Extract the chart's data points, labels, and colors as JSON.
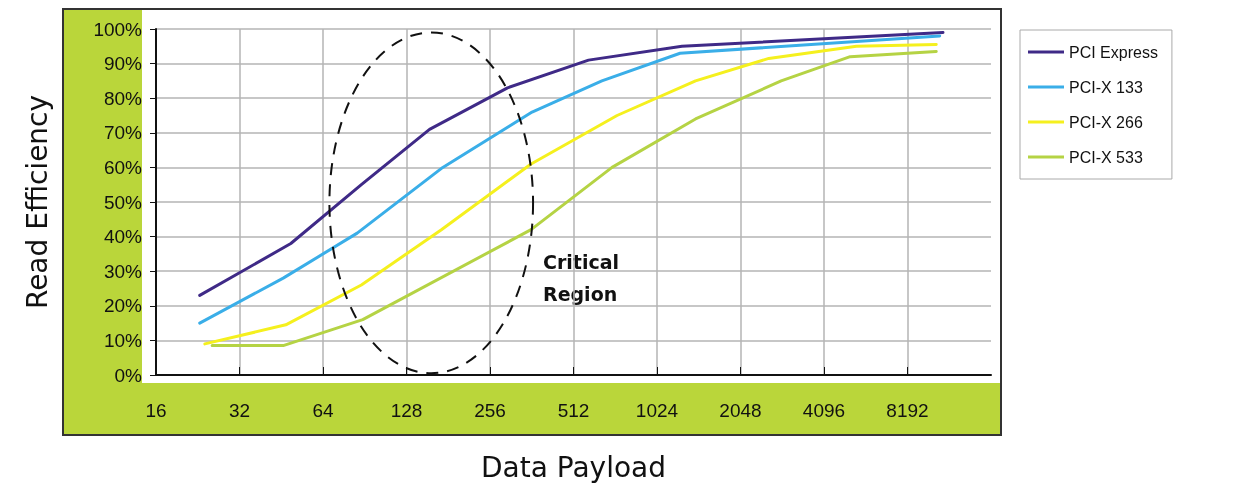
{
  "chart_data": {
    "type": "line",
    "xlabel": "Data Payload",
    "ylabel": "Read Efficiency",
    "log": "x",
    "grid": true,
    "legend": "right",
    "marker": "none",
    "line_style": "solid",
    "xlim": [
      16,
      16384
    ],
    "xticks": [
      16,
      32,
      64,
      128,
      256,
      512,
      1024,
      2048,
      4096,
      8192
    ],
    "ylim": [
      0,
      100
    ],
    "yticks": [
      {
        "value": 0,
        "label": "0%"
      },
      {
        "value": 10,
        "label": "10%"
      },
      {
        "value": 20,
        "label": "20%"
      },
      {
        "value": 30,
        "label": "30%"
      },
      {
        "value": 40,
        "label": "40%"
      },
      {
        "value": 50,
        "label": "50%"
      },
      {
        "value": 60,
        "label": "60%"
      },
      {
        "value": 70,
        "label": "70%"
      },
      {
        "value": 80,
        "label": "80%"
      },
      {
        "value": 90,
        "label": "90%"
      },
      {
        "value": 100,
        "label": "100%"
      }
    ],
    "annotations": [
      "Critical Region"
    ],
    "series": [
      {
        "name": "PCI Express",
        "color": "#3f2a87",
        "x": [
          23,
          49,
          88,
          155,
          296,
          580,
          1260,
          11000
        ],
        "values": [
          23,
          38,
          55,
          71,
          83,
          91,
          95,
          99
        ]
      },
      {
        "name": "PCI-X 133",
        "color": "#3aaee8",
        "x": [
          23,
          46,
          85,
          173,
          363,
          648,
          1240,
          10700
        ],
        "values": [
          15,
          28,
          41,
          60,
          76,
          85,
          93,
          98
        ]
      },
      {
        "name": "PCI-X 266",
        "color": "#f5f01e",
        "x": [
          24,
          47,
          88,
          171,
          360,
          735,
          1410,
          2590,
          5360,
          10400
        ],
        "values": [
          9,
          14.5,
          26,
          42,
          61,
          75,
          85,
          91.5,
          95,
          95.5
        ]
      },
      {
        "name": "PCI-X 533",
        "color": "#b5d344",
        "x": [
          25.5,
          46,
          89,
          360,
          705,
          1410,
          2870,
          5090,
          10400
        ],
        "values": [
          8.5,
          8.5,
          16,
          42,
          60,
          74,
          85,
          92,
          93.5
        ]
      }
    ]
  }
}
